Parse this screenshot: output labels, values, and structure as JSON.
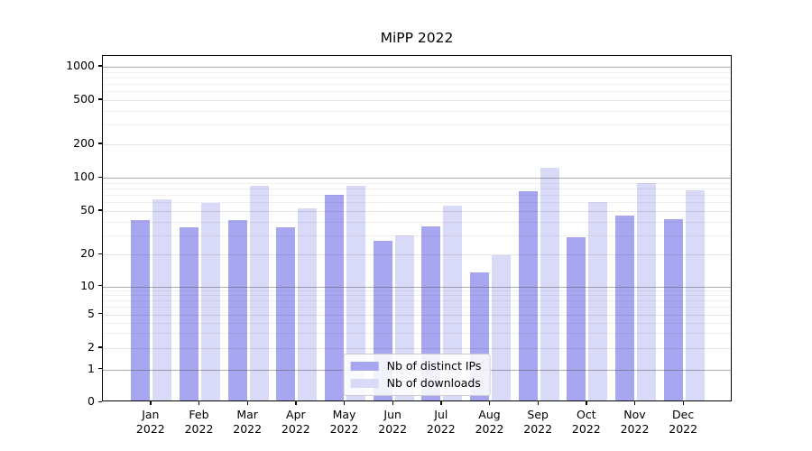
{
  "chart_data": {
    "type": "bar",
    "title": "MiPP 2022",
    "categories": [
      {
        "month": "Jan",
        "year": "2022"
      },
      {
        "month": "Feb",
        "year": "2022"
      },
      {
        "month": "Mar",
        "year": "2022"
      },
      {
        "month": "Apr",
        "year": "2022"
      },
      {
        "month": "May",
        "year": "2022"
      },
      {
        "month": "Jun",
        "year": "2022"
      },
      {
        "month": "Jul",
        "year": "2022"
      },
      {
        "month": "Aug",
        "year": "2022"
      },
      {
        "month": "Sep",
        "year": "2022"
      },
      {
        "month": "Oct",
        "year": "2022"
      },
      {
        "month": "Nov",
        "year": "2022"
      },
      {
        "month": "Dec",
        "year": "2022"
      }
    ],
    "series": [
      {
        "name": "Nb of distinct IPs",
        "color": "#a7a7f1",
        "values": [
          40,
          34,
          40,
          34,
          67,
          26,
          35,
          13,
          73,
          28,
          44,
          41
        ]
      },
      {
        "name": "Nb of downloads",
        "color": "#d9d9f8",
        "values": [
          61,
          57,
          81,
          51,
          81,
          29,
          54,
          19,
          118,
          58,
          86,
          74
        ]
      }
    ],
    "y_axis": {
      "scale": "symlog",
      "ticks": [
        0,
        1,
        2,
        5,
        10,
        20,
        50,
        100,
        200,
        500,
        1000
      ],
      "range": [
        0,
        1250
      ]
    },
    "xlabel": "",
    "ylabel": "",
    "grid": true,
    "legend_position": "lower center"
  }
}
